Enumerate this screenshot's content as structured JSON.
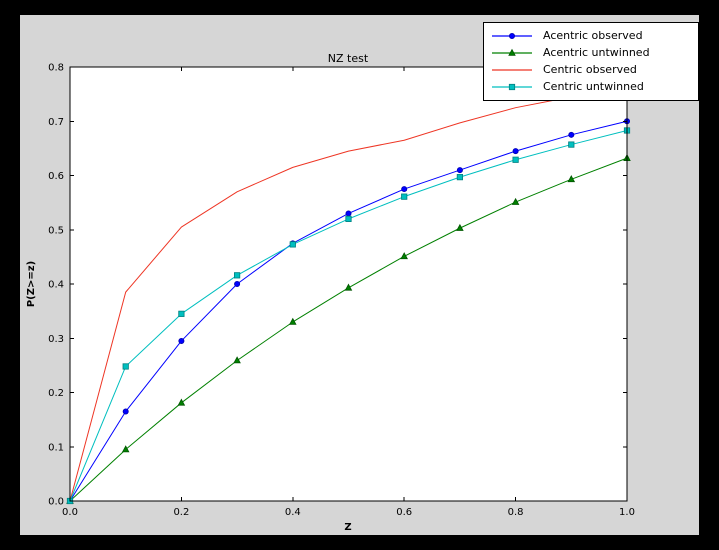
{
  "colors": {
    "outer_bg": "#000000",
    "figure_bg": "#d6d6d6",
    "plot_bg": "#ffffff",
    "frame": "#000000",
    "legend_bg": "#ffffff"
  },
  "chart_data": {
    "type": "line",
    "title": "NZ test",
    "xlabel": "Z",
    "ylabel": "P(Z>=z)",
    "xlim": [
      0.0,
      1.0
    ],
    "ylim": [
      0.0,
      0.8
    ],
    "xticks": [
      0.0,
      0.2,
      0.4,
      0.6,
      0.8,
      1.0
    ],
    "yticks": [
      0.0,
      0.1,
      0.2,
      0.3,
      0.4,
      0.5,
      0.6,
      0.7,
      0.8
    ],
    "grid": false,
    "legend_position": "upper right",
    "x": [
      0.0,
      0.1,
      0.2,
      0.3,
      0.4,
      0.5,
      0.6,
      0.7,
      0.8,
      0.9,
      1.0
    ],
    "series": [
      {
        "name": "Acentric observed",
        "color": "#0000ff",
        "edge": "#0000b0",
        "marker": "circle",
        "values": [
          0.0,
          0.165,
          0.295,
          0.4,
          0.475,
          0.53,
          0.575,
          0.61,
          0.645,
          0.675,
          0.7
        ]
      },
      {
        "name": "Acentric untwinned",
        "color": "#008000",
        "edge": "#005500",
        "marker": "triangle",
        "values": [
          0.0,
          0.095,
          0.181,
          0.259,
          0.33,
          0.393,
          0.451,
          0.503,
          0.551,
          0.593,
          0.632
        ]
      },
      {
        "name": "Centric observed",
        "color": "#ee3524",
        "edge": "#aa1208",
        "marker": "none",
        "values": [
          0.0,
          0.385,
          0.505,
          0.57,
          0.615,
          0.645,
          0.665,
          0.697,
          0.725,
          0.745,
          0.76
        ]
      },
      {
        "name": "Centric untwinned",
        "color": "#00bfbf",
        "edge": "#008080",
        "marker": "square",
        "values": [
          0.0,
          0.248,
          0.345,
          0.416,
          0.473,
          0.52,
          0.561,
          0.597,
          0.629,
          0.657,
          0.683
        ]
      }
    ]
  }
}
